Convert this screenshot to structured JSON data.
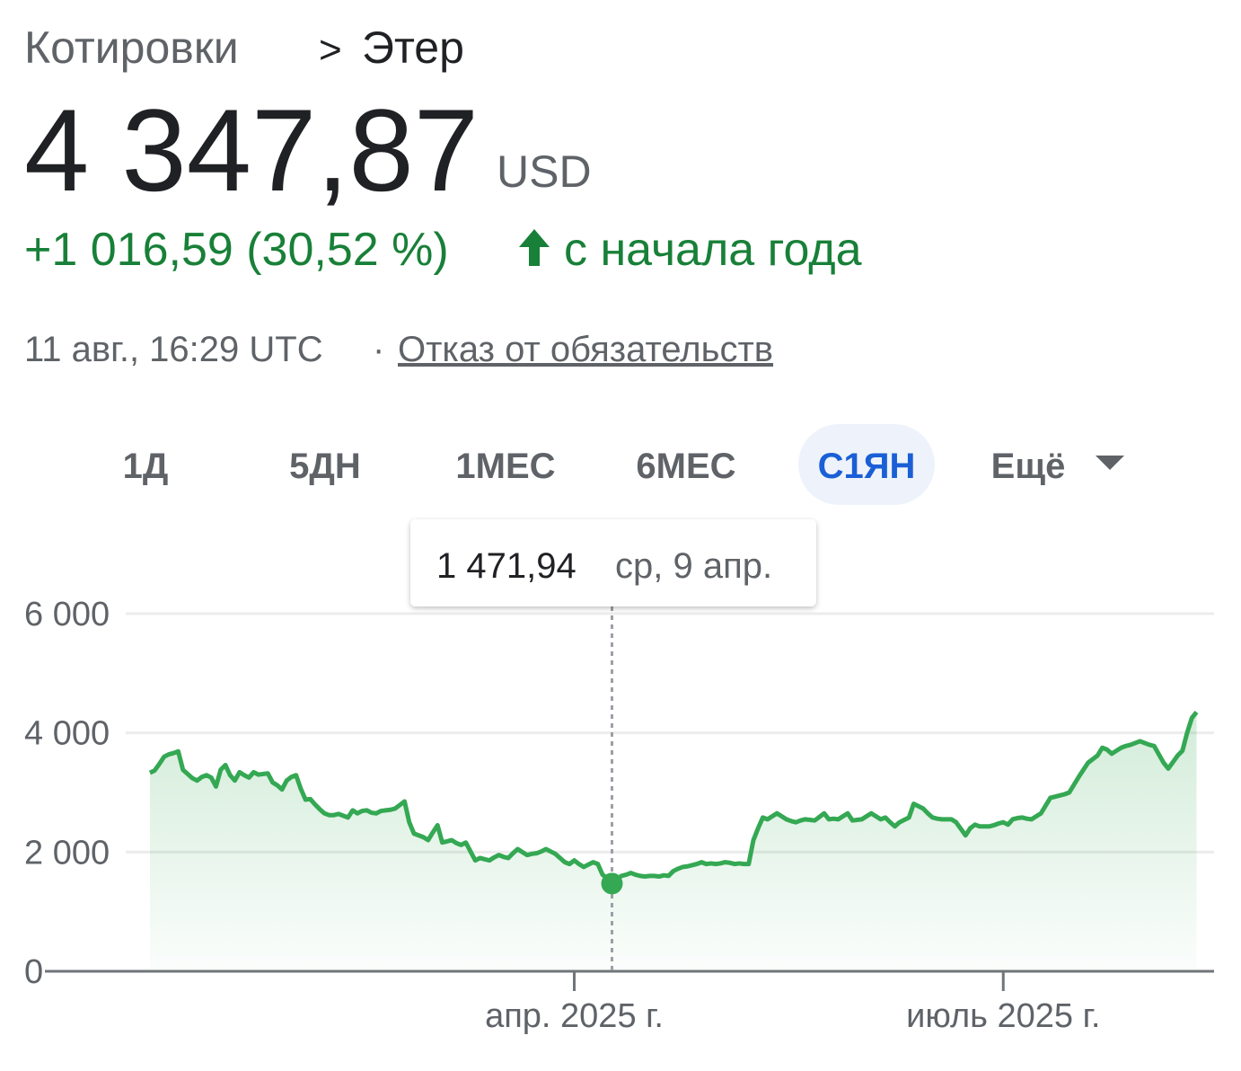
{
  "header": {
    "breadcrumb_root": "Котировки",
    "breadcrumb_sep": ">",
    "breadcrumb_current": "Этер",
    "price": "4 347,87",
    "currency": "USD",
    "change": "+1 016,59 (30,52 %)",
    "change_period": "с начала года",
    "timestamp": "11 авг., 16:29 UTC",
    "separator": "·",
    "disclaimer": "Отказ от обязательств"
  },
  "tabs": {
    "items": [
      "1Д",
      "5ДН",
      "1МЕС",
      "6МЕС",
      "С1ЯН"
    ],
    "selected": 4,
    "more": "Ещё"
  },
  "chart_data": {
    "type": "line",
    "color": "#34a853",
    "grid": true,
    "ylim": [
      0,
      6000
    ],
    "yticks": [
      {
        "value": 0,
        "label": "0"
      },
      {
        "value": 2000,
        "label": "2 000"
      },
      {
        "value": 4000,
        "label": "4 000"
      },
      {
        "value": 6000,
        "label": "6 000"
      }
    ],
    "tooltip": {
      "value": 1471.94,
      "label": "1 471,94",
      "date": "ср, 9 апр."
    },
    "categories": [
      null,
      null,
      null,
      null,
      null,
      null,
      null,
      null,
      null,
      null,
      null,
      null,
      null,
      null,
      null,
      null,
      null,
      null,
      null,
      null,
      null,
      null,
      null,
      null,
      null,
      null,
      null,
      null,
      null,
      null,
      null,
      null,
      null,
      null,
      null,
      null,
      null,
      null,
      null,
      null,
      null,
      null,
      null,
      null,
      null,
      null,
      null,
      null,
      null,
      null,
      null,
      null,
      null,
      null,
      null,
      null,
      null,
      null,
      null,
      null,
      null,
      null,
      null,
      null,
      null,
      null,
      null,
      null,
      null,
      null,
      null,
      null,
      null,
      null,
      null,
      null,
      null,
      null,
      null,
      null,
      null,
      null,
      null,
      null,
      null,
      null,
      null,
      null,
      null,
      null,
      "апр. 2025 г.",
      null,
      null,
      null,
      null,
      null,
      null,
      null,
      null,
      null,
      null,
      null,
      null,
      null,
      null,
      null,
      null,
      null,
      null,
      null,
      null,
      null,
      null,
      null,
      null,
      null,
      null,
      null,
      null,
      null,
      null,
      null,
      null,
      null,
      null,
      null,
      null,
      null,
      null,
      null,
      null,
      null,
      null,
      null,
      null,
      null,
      null,
      null,
      null,
      null,
      null,
      null,
      null,
      null,
      null,
      null,
      null,
      null,
      null,
      null,
      null,
      null,
      null,
      null,
      null,
      null,
      null,
      null,
      null,
      null,
      null,
      null,
      null,
      null,
      null,
      null,
      null,
      null,
      null,
      null,
      null,
      null,
      null,
      null,
      null,
      null,
      null,
      null,
      null,
      null,
      null,
      "июль 2025 г.",
      null,
      null,
      null,
      null,
      null,
      null,
      null,
      null,
      null,
      null,
      null,
      null,
      null,
      null,
      null,
      null,
      null,
      null,
      null,
      null,
      null,
      null,
      null,
      null,
      null,
      null,
      null,
      null,
      null,
      null,
      null,
      null,
      null,
      null,
      null,
      null,
      null,
      null,
      null,
      null,
      null
    ],
    "values": [
      3330,
      3370,
      3480,
      3600,
      3640,
      3660,
      3690,
      3380,
      3310,
      3240,
      3200,
      3260,
      3290,
      3250,
      3100,
      3380,
      3460,
      3290,
      3200,
      3340,
      3290,
      3250,
      3340,
      3300,
      3310,
      3320,
      3170,
      3120,
      3050,
      3200,
      3260,
      3290,
      3060,
      2880,
      2890,
      2800,
      2720,
      2650,
      2620,
      2620,
      2640,
      2610,
      2580,
      2700,
      2650,
      2690,
      2700,
      2660,
      2650,
      2690,
      2700,
      2710,
      2730,
      2790,
      2850,
      2500,
      2310,
      2280,
      2250,
      2200,
      2330,
      2450,
      2160,
      2180,
      2200,
      2150,
      2120,
      2160,
      2010,
      1860,
      1900,
      1880,
      1860,
      1910,
      1950,
      1920,
      1900,
      1980,
      2050,
      2000,
      1950,
      1970,
      1980,
      2010,
      2050,
      2010,
      1970,
      1900,
      1830,
      1800,
      1860,
      1800,
      1750,
      1790,
      1830,
      1800,
      1620,
      1560,
      1471.94,
      1540,
      1600,
      1620,
      1650,
      1620,
      1600,
      1590,
      1600,
      1600,
      1590,
      1610,
      1600,
      1680,
      1720,
      1750,
      1760,
      1780,
      1800,
      1830,
      1800,
      1810,
      1800,
      1810,
      1830,
      1820,
      1800,
      1810,
      1800,
      1800,
      2200,
      2400,
      2580,
      2550,
      2600,
      2650,
      2600,
      2550,
      2520,
      2500,
      2530,
      2550,
      2540,
      2530,
      2590,
      2650,
      2550,
      2560,
      2550,
      2600,
      2650,
      2530,
      2540,
      2550,
      2600,
      2650,
      2600,
      2550,
      2580,
      2500,
      2430,
      2500,
      2540,
      2580,
      2810,
      2770,
      2730,
      2650,
      2580,
      2560,
      2550,
      2550,
      2550,
      2500,
      2390,
      2280,
      2400,
      2460,
      2430,
      2430,
      2430,
      2450,
      2480,
      2500,
      2460,
      2550,
      2570,
      2580,
      2560,
      2550,
      2600,
      2650,
      2780,
      2910,
      2930,
      2950,
      2970,
      3000,
      3130,
      3260,
      3380,
      3500,
      3560,
      3620,
      3750,
      3720,
      3650,
      3700,
      3750,
      3780,
      3800,
      3830,
      3860,
      3830,
      3800,
      3780,
      3640,
      3500,
      3400,
      3510,
      3620,
      3700,
      4000,
      4250,
      4347.87
    ]
  }
}
